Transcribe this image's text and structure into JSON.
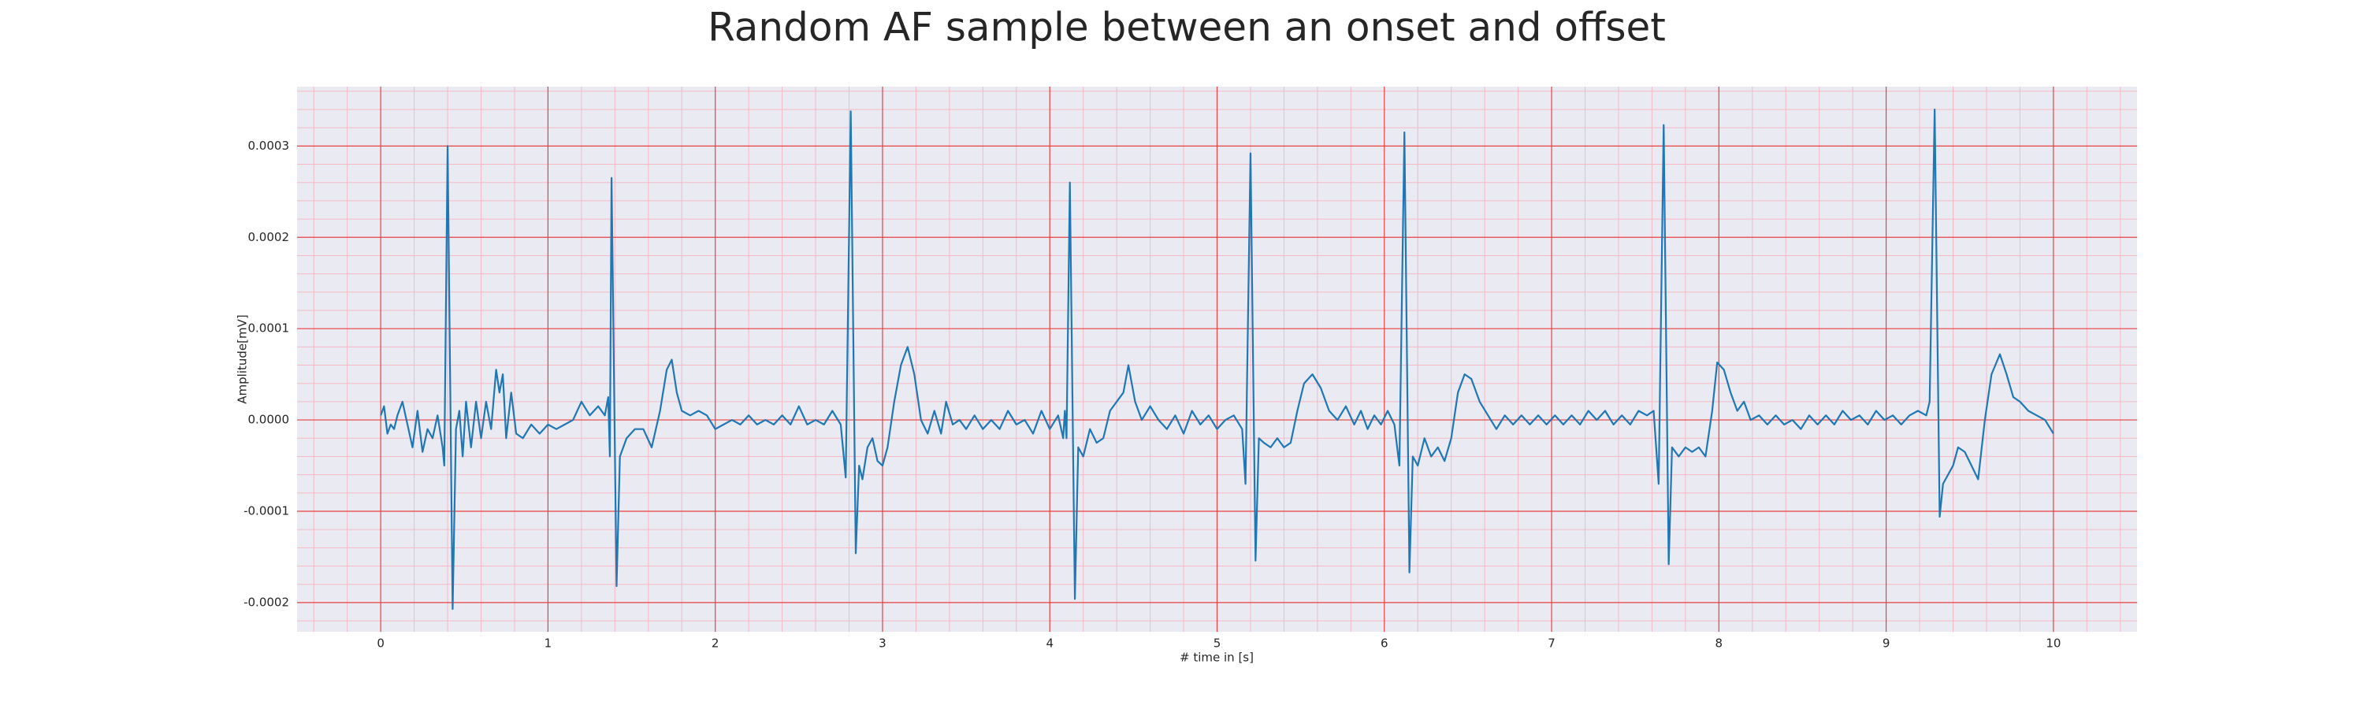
{
  "chart_data": {
    "type": "line",
    "title": "Random AF sample between an onset and offset",
    "xlabel": "# time in [s]",
    "ylabel": "Amplitude[mV]",
    "x": [
      0.0,
      0.02,
      0.04,
      0.06,
      0.08,
      0.1,
      0.13,
      0.16,
      0.19,
      0.22,
      0.25,
      0.28,
      0.31,
      0.34,
      0.37,
      0.38,
      0.4,
      0.43,
      0.45,
      0.47,
      0.49,
      0.51,
      0.54,
      0.57,
      0.6,
      0.63,
      0.66,
      0.69,
      0.71,
      0.73,
      0.75,
      0.78,
      0.81,
      0.85,
      0.9,
      0.95,
      1.0,
      1.05,
      1.1,
      1.15,
      1.2,
      1.25,
      1.3,
      1.34,
      1.36,
      1.37,
      1.38,
      1.41,
      1.43,
      1.47,
      1.52,
      1.57,
      1.62,
      1.67,
      1.71,
      1.74,
      1.77,
      1.8,
      1.85,
      1.9,
      1.95,
      2.0,
      2.05,
      2.1,
      2.15,
      2.2,
      2.25,
      2.3,
      2.35,
      2.4,
      2.45,
      2.5,
      2.55,
      2.6,
      2.65,
      2.7,
      2.75,
      2.78,
      2.81,
      2.84,
      2.86,
      2.88,
      2.91,
      2.94,
      2.97,
      3.0,
      3.03,
      3.07,
      3.11,
      3.15,
      3.19,
      3.23,
      3.27,
      3.31,
      3.35,
      3.38,
      3.42,
      3.46,
      3.5,
      3.55,
      3.6,
      3.65,
      3.7,
      3.75,
      3.8,
      3.85,
      3.9,
      3.95,
      4.0,
      4.05,
      4.08,
      4.09,
      4.1,
      4.12,
      4.15,
      4.17,
      4.2,
      4.24,
      4.28,
      4.32,
      4.36,
      4.4,
      4.44,
      4.47,
      4.51,
      4.55,
      4.6,
      4.65,
      4.7,
      4.75,
      4.8,
      4.85,
      4.9,
      4.95,
      5.0,
      5.05,
      5.1,
      5.15,
      5.17,
      5.2,
      5.23,
      5.25,
      5.28,
      5.32,
      5.36,
      5.4,
      5.44,
      5.48,
      5.52,
      5.57,
      5.62,
      5.67,
      5.72,
      5.77,
      5.82,
      5.86,
      5.9,
      5.94,
      5.98,
      6.02,
      6.06,
      6.09,
      6.12,
      6.15,
      6.17,
      6.2,
      6.24,
      6.28,
      6.32,
      6.36,
      6.4,
      6.44,
      6.48,
      6.52,
      6.57,
      6.62,
      6.67,
      6.72,
      6.77,
      6.82,
      6.87,
      6.92,
      6.97,
      7.02,
      7.07,
      7.12,
      7.17,
      7.22,
      7.27,
      7.32,
      7.37,
      7.42,
      7.47,
      7.52,
      7.57,
      7.61,
      7.64,
      7.67,
      7.7,
      7.72,
      7.76,
      7.8,
      7.84,
      7.88,
      7.92,
      7.96,
      7.99,
      8.03,
      8.07,
      8.11,
      8.15,
      8.19,
      8.24,
      8.29,
      8.34,
      8.39,
      8.44,
      8.49,
      8.54,
      8.59,
      8.64,
      8.69,
      8.74,
      8.79,
      8.84,
      8.89,
      8.94,
      8.99,
      9.04,
      9.09,
      9.14,
      9.19,
      9.24,
      9.26,
      9.29,
      9.32,
      9.34,
      9.37,
      9.4,
      9.43,
      9.47,
      9.51,
      9.55,
      9.59,
      9.63,
      9.68,
      9.72,
      9.76,
      9.8,
      9.85,
      9.9,
      9.95,
      10.0
    ],
    "values": [
      5e-06,
      1.5e-05,
      -1.5e-05,
      -5e-06,
      -1e-05,
      5e-06,
      2e-05,
      -5e-06,
      -3e-05,
      1e-05,
      -3.5e-05,
      -1e-05,
      -2e-05,
      5e-06,
      -3e-05,
      -5e-05,
      0.0003,
      -0.000207,
      -1e-05,
      1e-05,
      -4e-05,
      2e-05,
      -3e-05,
      2e-05,
      -2e-05,
      2e-05,
      -1e-05,
      5.5e-05,
      3e-05,
      5e-05,
      -2e-05,
      3e-05,
      -1.5e-05,
      -2e-05,
      -5e-06,
      -1.5e-05,
      -5e-06,
      -1e-05,
      -5e-06,
      0,
      2e-05,
      5e-06,
      1.5e-05,
      5e-06,
      2.5e-05,
      -4e-05,
      0.000265,
      -0.000182,
      -4e-05,
      -2e-05,
      -1e-05,
      -1e-05,
      -3e-05,
      1e-05,
      5.5e-05,
      6.6e-05,
      3e-05,
      1e-05,
      5e-06,
      1e-05,
      5e-06,
      -1e-05,
      -5e-06,
      0,
      -5e-06,
      5e-06,
      -5e-06,
      0,
      -5e-06,
      5e-06,
      -5e-06,
      1.5e-05,
      -5e-06,
      0,
      -5e-06,
      1e-05,
      -5e-06,
      -6.3e-05,
      0.000338,
      -0.000146,
      -5e-05,
      -6.5e-05,
      -3e-05,
      -2e-05,
      -4.5e-05,
      -5e-05,
      -3e-05,
      2e-05,
      6e-05,
      8e-05,
      5e-05,
      0,
      -1.5e-05,
      1e-05,
      -1.5e-05,
      2e-05,
      -5e-06,
      0,
      -1e-05,
      5e-06,
      -1e-05,
      0,
      -1e-05,
      1e-05,
      -5e-06,
      0,
      -1.5e-05,
      1e-05,
      -1e-05,
      5e-06,
      -2e-05,
      1e-05,
      -2e-05,
      0.00026,
      -0.000196,
      -3e-05,
      -4e-05,
      -1e-05,
      -2.5e-05,
      -2e-05,
      1e-05,
      2e-05,
      3e-05,
      6e-05,
      2e-05,
      0,
      1.5e-05,
      0,
      -1e-05,
      5e-06,
      -1.5e-05,
      1e-05,
      -5e-06,
      5e-06,
      -1e-05,
      0,
      5e-06,
      -1e-05,
      -7e-05,
      0.000292,
      -0.000154,
      -2e-05,
      -2.5e-05,
      -3e-05,
      -2e-05,
      -3e-05,
      -2.5e-05,
      1e-05,
      4e-05,
      5e-05,
      3.5e-05,
      1e-05,
      0,
      1.5e-05,
      -5e-06,
      1e-05,
      -1e-05,
      5e-06,
      -5e-06,
      1e-05,
      -5e-06,
      -5e-05,
      0.000315,
      -0.000167,
      -4e-05,
      -5e-05,
      -2e-05,
      -4e-05,
      -3e-05,
      -4.5e-05,
      -2e-05,
      3e-05,
      5e-05,
      4.5e-05,
      2e-05,
      5e-06,
      -1e-05,
      5e-06,
      -5e-06,
      5e-06,
      -5e-06,
      5e-06,
      -5e-06,
      5e-06,
      -5e-06,
      5e-06,
      -5e-06,
      1e-05,
      0,
      1e-05,
      -5e-06,
      5e-06,
      -5e-06,
      1e-05,
      5e-06,
      1e-05,
      -7e-05,
      0.000323,
      -0.000158,
      -3e-05,
      -4e-05,
      -3e-05,
      -3.5e-05,
      -3e-05,
      -4e-05,
      1e-05,
      6.3e-05,
      5.5e-05,
      3e-05,
      1e-05,
      2e-05,
      0,
      5e-06,
      -5e-06,
      5e-06,
      -5e-06,
      0,
      -1e-05,
      5e-06,
      -5e-06,
      5e-06,
      -5e-06,
      1e-05,
      0,
      5e-06,
      -5e-06,
      1e-05,
      0,
      5e-06,
      -5e-06,
      5e-06,
      1e-05,
      5e-06,
      2e-05,
      0.00034,
      -0.000106,
      -7e-05,
      -6e-05,
      -5e-05,
      -3e-05,
      -3.5e-05,
      -5e-05,
      -6.5e-05,
      0,
      5e-05,
      7.2e-05,
      5e-05,
      2.5e-05,
      2e-05,
      1e-05,
      5e-06,
      0,
      -1.5e-05
    ],
    "color": "#1f77b4",
    "xlim": [
      -0.5,
      10.5
    ],
    "xticks": [
      0,
      1,
      2,
      3,
      4,
      5,
      6,
      7,
      8,
      9,
      10
    ],
    "ylim": [
      -0.000232,
      0.000365
    ],
    "yticks": [
      -0.0002,
      -0.0001,
      {
        "value": 0,
        "label": "0.0000"
      },
      0.0001,
      0.0002,
      0.0003
    ],
    "grid": true,
    "grid_color": "#e8403f",
    "minor_grid_color": "#f6b9c4",
    "minor_grid_divisions": 5,
    "background": "#eaeaf2"
  }
}
